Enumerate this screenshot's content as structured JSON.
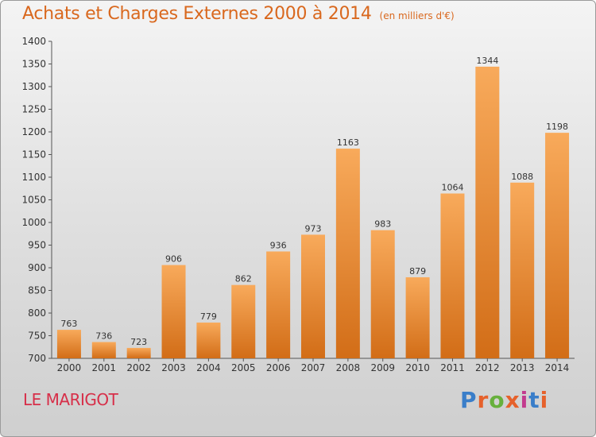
{
  "header": {
    "title": "Achats et Charges Externes 2000 à 2014",
    "subtitle": "(en milliers d'€)"
  },
  "footer": {
    "commune": "LE MARIGOT",
    "logo_text": "Proxiti"
  },
  "colors": {
    "title": "#d9681e",
    "commune": "#d72f49",
    "bar_top": "#f8aa5b",
    "bar_bottom": "#d26d17",
    "logo": [
      "#3a7ec9",
      "#e6612b",
      "#67b03c",
      "#e6612b",
      "#c33b8e",
      "#3a7ec9",
      "#e6612b"
    ]
  },
  "chart_data": {
    "type": "bar",
    "title": "Achats et Charges Externes 2000 à 2014",
    "categories": [
      "2000",
      "2001",
      "2002",
      "2003",
      "2004",
      "2005",
      "2006",
      "2007",
      "2008",
      "2009",
      "2010",
      "2011",
      "2012",
      "2013",
      "2014"
    ],
    "values": [
      763,
      736,
      723,
      906,
      779,
      862,
      936,
      973,
      1163,
      983,
      879,
      1064,
      1344,
      1088,
      1198
    ],
    "ylim": [
      700,
      1400
    ],
    "yticks": [
      700,
      750,
      800,
      850,
      900,
      950,
      1000,
      1050,
      1100,
      1150,
      1200,
      1250,
      1300,
      1350,
      1400
    ],
    "grid": false,
    "data_labels": true
  }
}
